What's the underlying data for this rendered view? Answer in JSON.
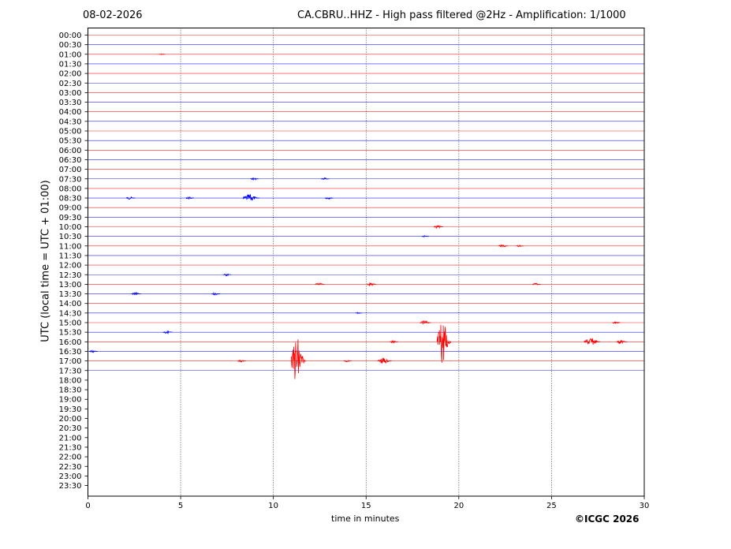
{
  "header": {
    "date": "08-02-2026",
    "title": "CA.CBRU..HHZ - High pass filtered @2Hz - Amplification: 1/1000"
  },
  "footer": {
    "credit": "©ICGC 2026"
  },
  "colors": {
    "red": "#ff0000",
    "blue": "#0000ff",
    "grid": "#000000"
  },
  "chart_data": {
    "type": "line",
    "xlabel": "time in minutes",
    "ylabel": "UTC (local time = UTC + 01:00)",
    "xlim": [
      0,
      30
    ],
    "xticks": [
      "0",
      "5",
      "10",
      "15",
      "20",
      "25",
      "30"
    ],
    "yticks": [
      "00:00",
      "00:30",
      "01:00",
      "01:30",
      "02:00",
      "02:30",
      "03:00",
      "03:30",
      "04:00",
      "04:30",
      "05:00",
      "05:30",
      "06:00",
      "06:30",
      "07:00",
      "07:30",
      "08:00",
      "08:30",
      "09:00",
      "09:30",
      "10:00",
      "10:30",
      "11:00",
      "11:30",
      "12:00",
      "12:30",
      "13:00",
      "13:30",
      "14:00",
      "14:30",
      "15:00",
      "15:30",
      "16:00",
      "16:30",
      "17:00",
      "17:30",
      "18:00",
      "18:30",
      "19:00",
      "19:30",
      "20:00",
      "20:30",
      "21:00",
      "21:30",
      "22:00",
      "22:30",
      "23:00",
      "23:30"
    ],
    "grid": "vertical dotted lines at 5, 10, 15, 20, 25 minutes",
    "traces_recorded_through": "17:30",
    "trace_colors": "alternating red (full hour) and blue (half hour)",
    "events": [
      {
        "row": "01:00",
        "minute": 4.0,
        "amp": 0.6
      },
      {
        "row": "07:30",
        "minute": 9.0,
        "amp": 1.5
      },
      {
        "row": "07:30",
        "minute": 12.8,
        "amp": 1.5
      },
      {
        "row": "08:30",
        "minute": 2.3,
        "amp": 1.8
      },
      {
        "row": "08:30",
        "minute": 5.5,
        "amp": 1.5
      },
      {
        "row": "08:30",
        "minute": 8.8,
        "amp": 5.0
      },
      {
        "row": "08:30",
        "minute": 13.0,
        "amp": 1.5
      },
      {
        "row": "10:00",
        "minute": 18.9,
        "amp": 2.0
      },
      {
        "row": "10:30",
        "minute": 18.2,
        "amp": 1.0
      },
      {
        "row": "11:00",
        "minute": 22.4,
        "amp": 2.0
      },
      {
        "row": "11:00",
        "minute": 23.3,
        "amp": 1.2
      },
      {
        "row": "12:30",
        "minute": 7.5,
        "amp": 1.5
      },
      {
        "row": "13:00",
        "minute": 12.5,
        "amp": 2.0
      },
      {
        "row": "13:00",
        "minute": 15.3,
        "amp": 2.0
      },
      {
        "row": "13:00",
        "minute": 24.2,
        "amp": 1.5
      },
      {
        "row": "13:30",
        "minute": 2.6,
        "amp": 2.0
      },
      {
        "row": "13:30",
        "minute": 6.9,
        "amp": 1.5
      },
      {
        "row": "14:30",
        "minute": 14.6,
        "amp": 0.8
      },
      {
        "row": "15:00",
        "minute": 18.2,
        "amp": 2.5
      },
      {
        "row": "15:00",
        "minute": 28.5,
        "amp": 1.5
      },
      {
        "row": "15:30",
        "minute": 4.3,
        "amp": 2.0
      },
      {
        "row": "16:00",
        "minute": 19.2,
        "amp": 30.0
      },
      {
        "row": "16:00",
        "minute": 16.5,
        "amp": 1.5
      },
      {
        "row": "16:00",
        "minute": 27.2,
        "amp": 5.0
      },
      {
        "row": "16:00",
        "minute": 28.8,
        "amp": 2.5
      },
      {
        "row": "16:30",
        "minute": 0.3,
        "amp": 1.5
      },
      {
        "row": "17:00",
        "minute": 11.35,
        "amp": 32.0
      },
      {
        "row": "17:00",
        "minute": 8.3,
        "amp": 1.5
      },
      {
        "row": "17:00",
        "minute": 16.0,
        "amp": 4.0
      },
      {
        "row": "17:00",
        "minute": 14.0,
        "amp": 1.2
      }
    ]
  }
}
